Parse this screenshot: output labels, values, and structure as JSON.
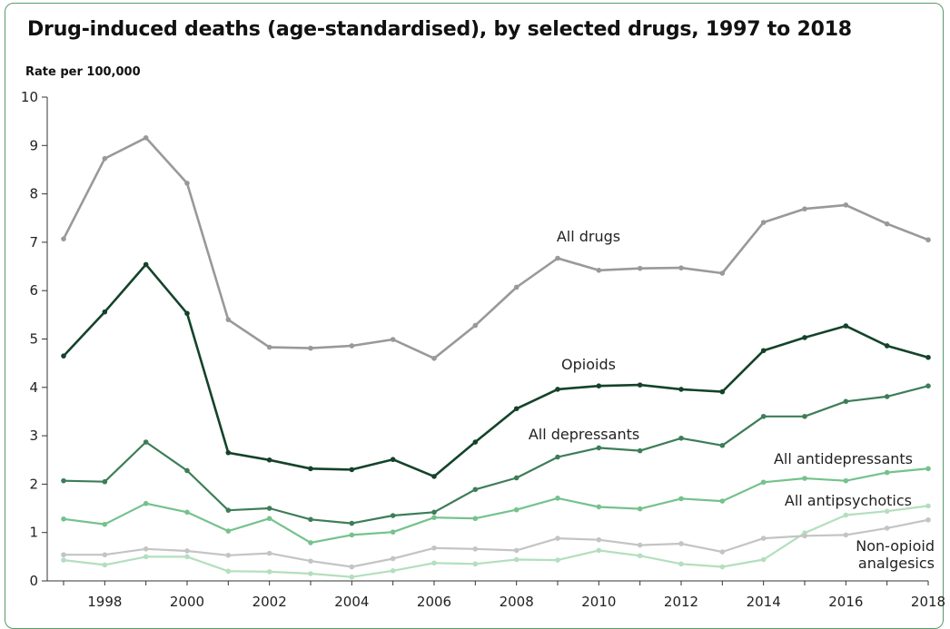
{
  "title": "Drug-induced deaths (age-standardised), by selected drugs, 1997 to 2018",
  "chart_data": {
    "type": "line",
    "title": "Drug-induced deaths (age-standardised), by selected drugs, 1997 to 2018",
    "ylabel": "Rate per 100,000",
    "xlabel": "",
    "ylim": [
      0,
      10
    ],
    "yticks": [
      0,
      1,
      2,
      3,
      4,
      5,
      6,
      7,
      8,
      9,
      10
    ],
    "xticks": [
      1998,
      2000,
      2002,
      2004,
      2006,
      2008,
      2010,
      2012,
      2014,
      2016,
      2018
    ],
    "x": [
      1997,
      1998,
      1999,
      2000,
      2001,
      2002,
      2003,
      2004,
      2005,
      2006,
      2007,
      2008,
      2009,
      2010,
      2011,
      2012,
      2013,
      2014,
      2015,
      2016,
      2017,
      2018
    ],
    "grid": false,
    "legend": "inline labels",
    "series": [
      {
        "id": "all-drugs",
        "name": "All drugs",
        "color": "#999999",
        "values": [
          7.07,
          8.73,
          9.16,
          8.22,
          5.4,
          4.83,
          4.81,
          4.86,
          4.99,
          4.6,
          5.28,
          6.07,
          6.67,
          6.42,
          6.46,
          6.47,
          6.36,
          7.41,
          7.69,
          7.77,
          7.38,
          7.05
        ]
      },
      {
        "id": "opioids",
        "name": "Opioids",
        "color": "#14432a",
        "values": [
          4.65,
          5.56,
          6.54,
          5.53,
          2.65,
          2.5,
          2.32,
          2.3,
          2.51,
          2.16,
          2.87,
          3.56,
          3.96,
          4.03,
          4.05,
          3.96,
          3.91,
          4.76,
          5.03,
          5.27,
          4.86,
          4.62
        ]
      },
      {
        "id": "all-depressants",
        "name": "All depressants",
        "color": "#3d7d58",
        "values": [
          2.07,
          2.05,
          2.87,
          2.28,
          1.46,
          1.5,
          1.27,
          1.19,
          1.35,
          1.42,
          1.89,
          2.13,
          2.56,
          2.75,
          2.69,
          2.95,
          2.8,
          3.4,
          3.4,
          3.71,
          3.81,
          4.03
        ]
      },
      {
        "id": "all-antidepressants",
        "name": "All antidepressants",
        "color": "#74c28c",
        "values": [
          1.28,
          1.17,
          1.6,
          1.42,
          1.03,
          1.29,
          0.79,
          0.95,
          1.01,
          1.31,
          1.29,
          1.47,
          1.71,
          1.53,
          1.49,
          1.7,
          1.65,
          2.04,
          2.12,
          2.07,
          2.24,
          2.32
        ]
      },
      {
        "id": "all-antipsychotics",
        "name": "All antipsychotics",
        "color": "#b3dfbe",
        "values": [
          0.43,
          0.33,
          0.5,
          0.5,
          0.2,
          0.19,
          0.15,
          0.08,
          0.21,
          0.37,
          0.35,
          0.44,
          0.43,
          0.63,
          0.52,
          0.35,
          0.29,
          0.44,
          0.99,
          1.36,
          1.44,
          1.55
        ]
      },
      {
        "id": "non-opioid-analgesics",
        "name": "Non-opioid analgesics",
        "name_lines": [
          "Non-opioid",
          "analgesics"
        ],
        "color": "#c4c4c4",
        "values": [
          0.54,
          0.54,
          0.66,
          0.62,
          0.53,
          0.57,
          0.41,
          0.29,
          0.46,
          0.68,
          0.66,
          0.63,
          0.88,
          0.85,
          0.74,
          0.77,
          0.6,
          0.88,
          0.93,
          0.95,
          1.09,
          1.26
        ]
      }
    ]
  }
}
